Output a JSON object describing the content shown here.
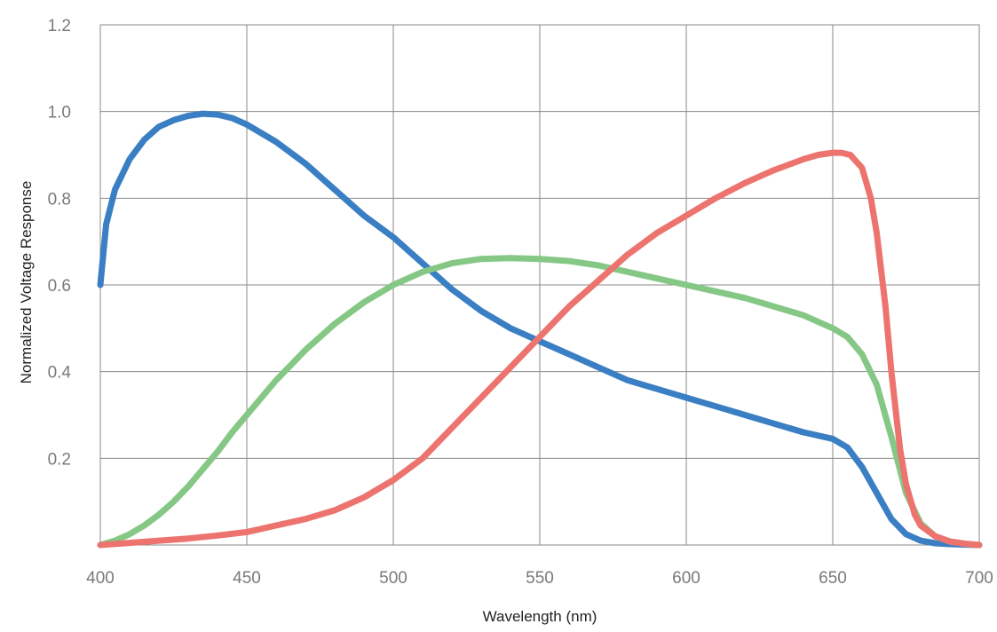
{
  "chart_data": {
    "type": "line",
    "title": "",
    "xlabel": "Wavelength (nm)",
    "ylabel": "Normalized Voltage Response",
    "xlim": [
      400,
      700
    ],
    "ylim": [
      0,
      1.2
    ],
    "x_ticks": [
      400,
      450,
      500,
      550,
      600,
      650,
      700
    ],
    "x_tick_labels": [
      "400",
      "450",
      "500",
      "550",
      "600",
      "650",
      "700"
    ],
    "y_ticks": [
      0.2,
      0.4,
      0.6,
      0.8,
      1.0,
      1.2
    ],
    "y_tick_labels": [
      "0.2",
      "0.4",
      "0.6",
      "0.8",
      "1.0",
      "1.2"
    ],
    "grid": true,
    "legend": "none",
    "series": [
      {
        "color": "#3a7ec3",
        "x": [
          400,
          402,
          405,
          410,
          415,
          420,
          425,
          430,
          435,
          440,
          445,
          450,
          460,
          470,
          480,
          490,
          500,
          510,
          520,
          530,
          540,
          550,
          560,
          570,
          580,
          590,
          600,
          610,
          620,
          630,
          640,
          650,
          655,
          660,
          665,
          670,
          675,
          680,
          685,
          690,
          695,
          700
        ],
        "y": [
          0.6,
          0.74,
          0.82,
          0.89,
          0.935,
          0.965,
          0.98,
          0.99,
          0.995,
          0.993,
          0.985,
          0.97,
          0.93,
          0.88,
          0.82,
          0.76,
          0.71,
          0.65,
          0.59,
          0.54,
          0.5,
          0.47,
          0.44,
          0.41,
          0.38,
          0.36,
          0.34,
          0.32,
          0.3,
          0.28,
          0.26,
          0.245,
          0.225,
          0.18,
          0.12,
          0.06,
          0.025,
          0.01,
          0.004,
          0.002,
          0.001,
          0.0
        ]
      },
      {
        "color": "#85c785",
        "x": [
          400,
          405,
          410,
          415,
          420,
          425,
          430,
          435,
          440,
          445,
          450,
          460,
          470,
          480,
          490,
          500,
          510,
          520,
          530,
          540,
          550,
          560,
          570,
          580,
          590,
          600,
          610,
          620,
          630,
          640,
          650,
          655,
          660,
          665,
          670,
          675,
          680,
          685,
          690,
          695,
          700
        ],
        "y": [
          0.0,
          0.01,
          0.025,
          0.045,
          0.07,
          0.1,
          0.135,
          0.175,
          0.215,
          0.26,
          0.3,
          0.38,
          0.45,
          0.51,
          0.56,
          0.6,
          0.63,
          0.65,
          0.66,
          0.662,
          0.66,
          0.655,
          0.645,
          0.63,
          0.615,
          0.6,
          0.585,
          0.57,
          0.55,
          0.53,
          0.5,
          0.48,
          0.44,
          0.37,
          0.25,
          0.12,
          0.05,
          0.02,
          0.008,
          0.003,
          0.0
        ]
      },
      {
        "color": "#ec736e",
        "x": [
          400,
          410,
          420,
          430,
          440,
          450,
          460,
          470,
          480,
          490,
          500,
          510,
          520,
          530,
          540,
          550,
          560,
          570,
          580,
          590,
          600,
          610,
          620,
          630,
          640,
          645,
          650,
          653,
          656,
          660,
          663,
          665,
          668,
          670,
          673,
          675,
          678,
          680,
          685,
          690,
          695,
          700
        ],
        "y": [
          0.0,
          0.005,
          0.01,
          0.015,
          0.022,
          0.03,
          0.045,
          0.06,
          0.08,
          0.11,
          0.15,
          0.2,
          0.27,
          0.34,
          0.41,
          0.48,
          0.55,
          0.61,
          0.67,
          0.72,
          0.76,
          0.8,
          0.835,
          0.865,
          0.89,
          0.9,
          0.905,
          0.905,
          0.9,
          0.87,
          0.8,
          0.72,
          0.55,
          0.4,
          0.22,
          0.14,
          0.07,
          0.045,
          0.02,
          0.008,
          0.003,
          0.0
        ]
      }
    ]
  }
}
